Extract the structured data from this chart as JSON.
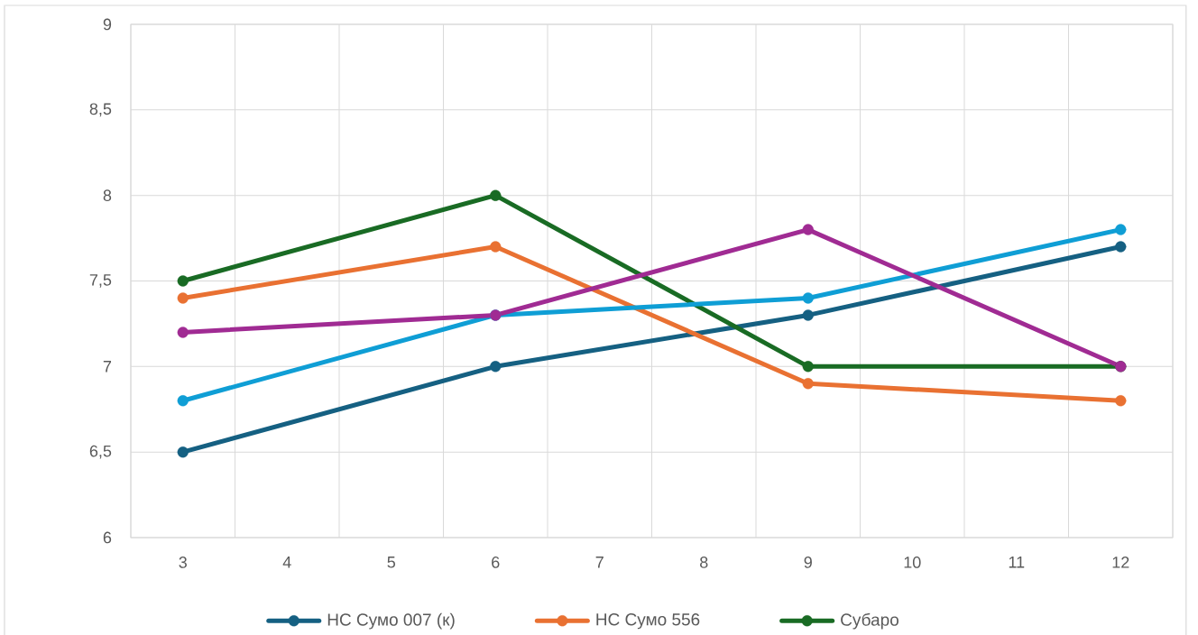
{
  "chart_data": {
    "type": "line",
    "x": [
      3,
      6,
      9,
      12
    ],
    "series": [
      {
        "name": "НС Сумо 007 (к)",
        "color": "#156082",
        "values": [
          6.5,
          7.0,
          7.3,
          7.7
        ]
      },
      {
        "name": "НС Сумо 556",
        "color": "#e97132",
        "values": [
          7.4,
          7.7,
          6.9,
          6.8
        ]
      },
      {
        "name": "Субаро",
        "color": "#196b24",
        "values": [
          7.5,
          8.0,
          7.0,
          7.0
        ]
      },
      {
        "color": "#0f9ed5",
        "values": [
          6.8,
          7.3,
          7.4,
          7.8
        ]
      },
      {
        "color": "#a02b93",
        "values": [
          7.2,
          7.3,
          7.8,
          7.0
        ]
      }
    ],
    "xlim": [
      2.5,
      12.5
    ],
    "xticks": [
      {
        "value": 2.5,
        "label": null
      },
      3,
      {
        "value": 3.5,
        "label": null
      },
      4,
      {
        "value": 4.5,
        "label": null
      },
      5,
      {
        "value": 5.5,
        "label": null
      },
      6,
      {
        "value": 6.5,
        "label": null
      },
      7,
      {
        "value": 7.5,
        "label": null
      },
      8,
      {
        "value": 8.5,
        "label": null
      },
      9,
      {
        "value": 9.5,
        "label": null
      },
      10,
      {
        "value": 10.5,
        "label": null
      },
      11,
      {
        "value": 11.5,
        "label": null
      },
      12,
      {
        "value": 12.5,
        "label": null
      }
    ],
    "ylim": [
      6,
      9
    ],
    "yticks": [
      6,
      {
        "value": 6.5,
        "label": "6,5"
      },
      7,
      {
        "value": 7.5,
        "label": "7,5"
      },
      8,
      {
        "value": 8.5,
        "label": "8,5"
      },
      9
    ],
    "grid": true,
    "legend": "bottom",
    "marker": "circle",
    "line_style": "solid"
  }
}
